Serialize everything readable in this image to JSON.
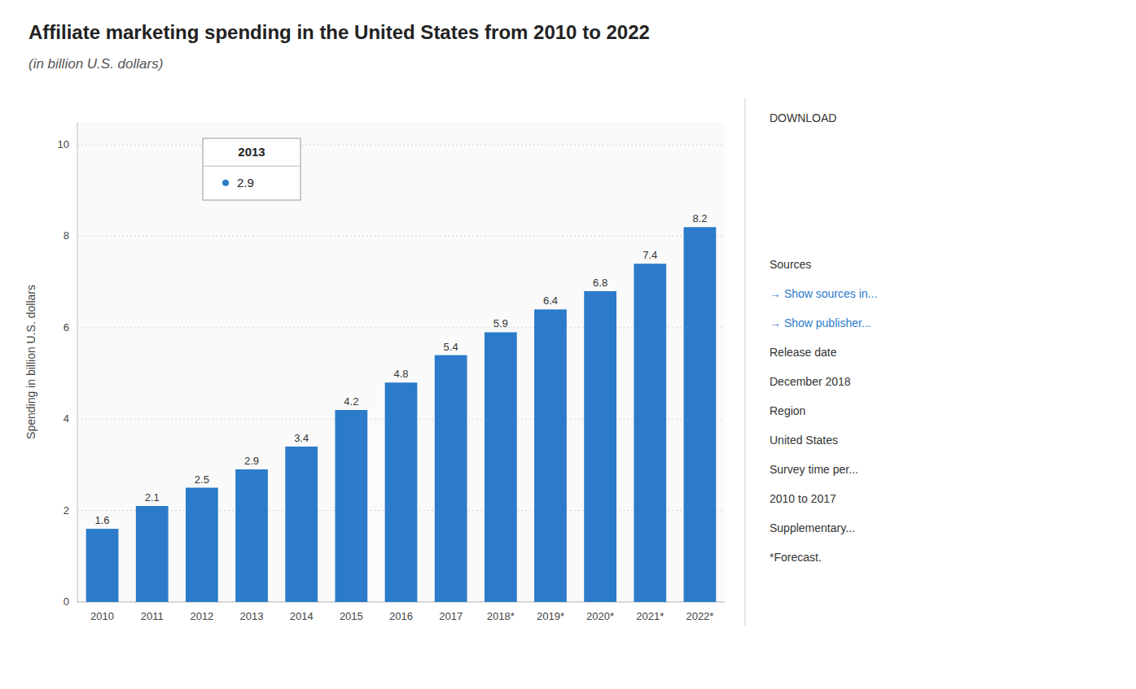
{
  "chart_data": {
    "type": "bar",
    "title": "Affiliate marketing spending in the United States from 2010 to 2022",
    "subtitle": "(in billion U.S. dollars)",
    "ylabel": "Spending in billion U.S. dollars",
    "categories": [
      "2010",
      "2011",
      "2012",
      "2013",
      "2014",
      "2015",
      "2016",
      "2017",
      "2018*",
      "2019*",
      "2020*",
      "2021*",
      "2022*"
    ],
    "values": [
      1.6,
      2.1,
      2.5,
      2.9,
      3.4,
      4.2,
      4.8,
      5.4,
      5.9,
      6.4,
      6.8,
      7.4,
      8.2
    ],
    "color": "#2b7bca",
    "ylim": [
      0,
      10.5
    ],
    "yticks": [
      0,
      2,
      4,
      6,
      8,
      10
    ],
    "grid": true,
    "data_labels": true,
    "annotations": [
      {
        "category": "2013",
        "value": 2.9
      },
      {
        "text": "DOWNLOAD"
      },
      {
        "text": "Sources"
      },
      {
        "text": "→ Show sources in..."
      },
      {
        "text": "→ Show publisher..."
      },
      {
        "text": "Release date"
      },
      {
        "text": "December 2018"
      },
      {
        "text": "Region"
      },
      {
        "text": "United States"
      },
      {
        "text": "Survey time per..."
      },
      {
        "text": "2010 to 2017"
      },
      {
        "text": "Supplementary..."
      },
      {
        "text": "*Forecast."
      }
    ]
  }
}
